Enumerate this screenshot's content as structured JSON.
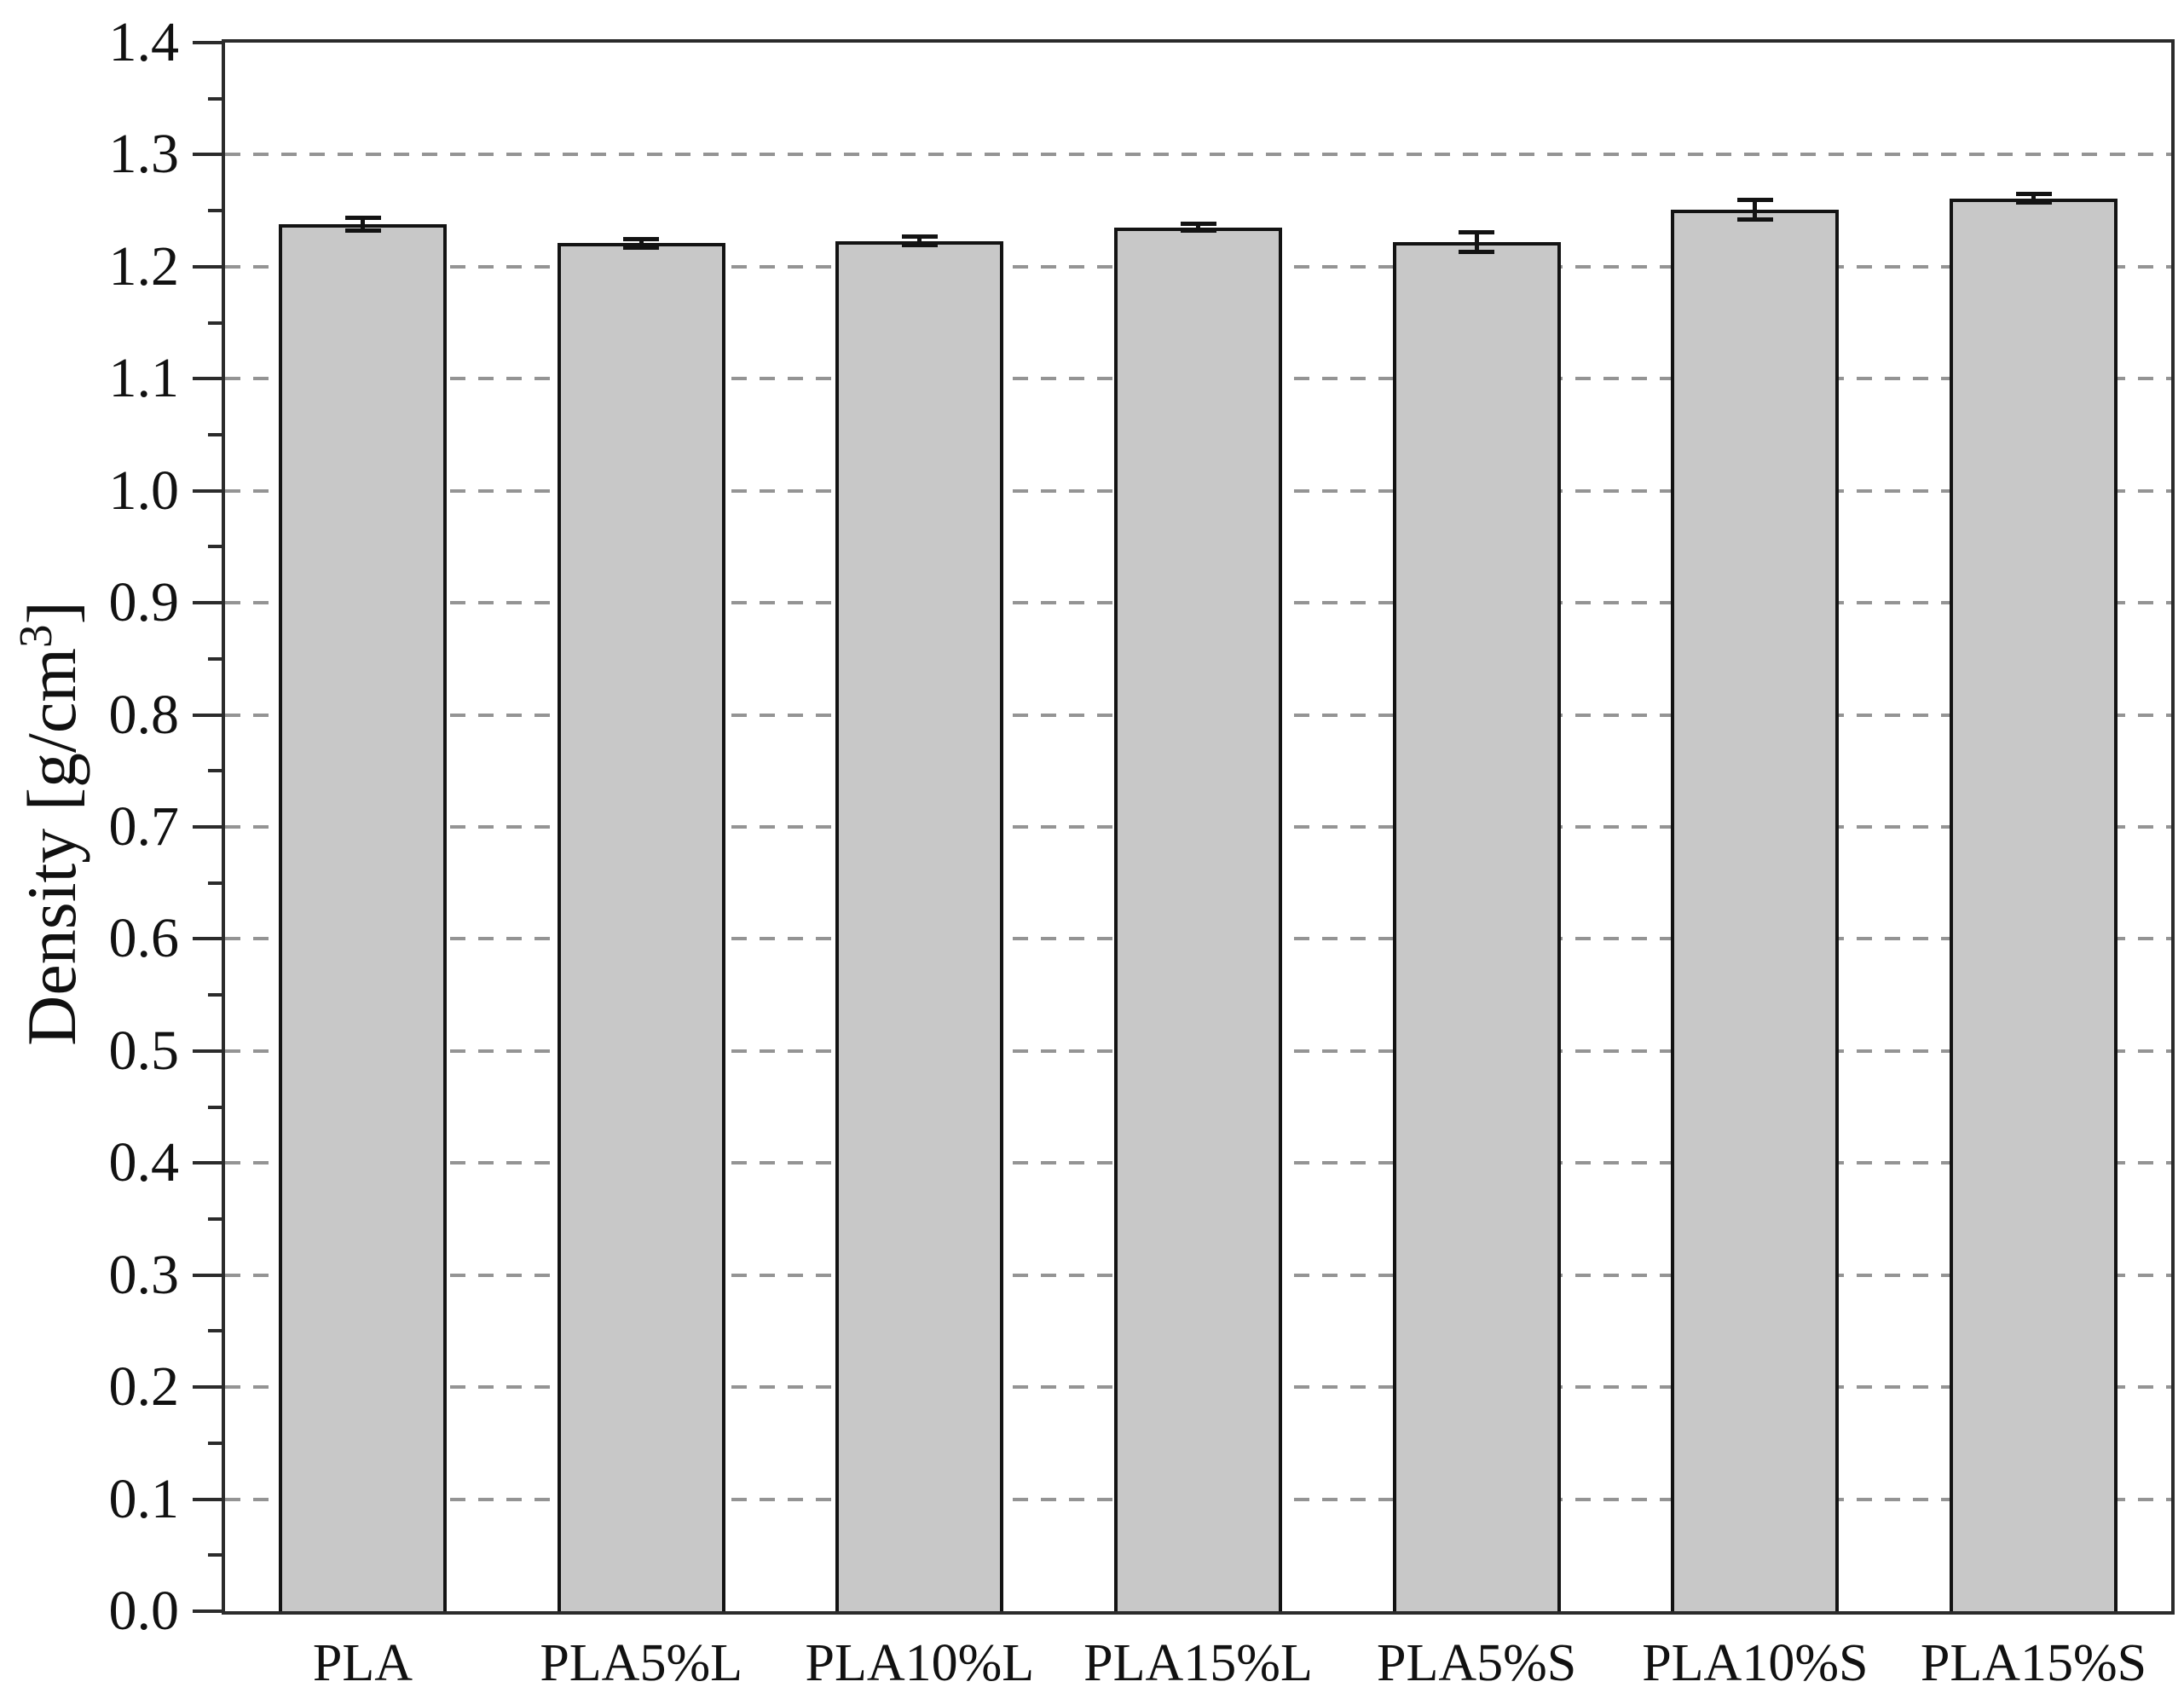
{
  "figure": {
    "background": "#ffffff",
    "kind": "scientific bar chart with error bars"
  },
  "chart_data": {
    "type": "bar",
    "title": "",
    "xlabel": "",
    "ylabel": "Density [g/cm³]",
    "categories": [
      "PLA",
      "PLA5%L",
      "PLA10%L",
      "PLA15%L",
      "PLA5%S",
      "PLA10%S",
      "PLA15%S"
    ],
    "values": [
      1.238,
      1.221,
      1.223,
      1.235,
      1.222,
      1.251,
      1.261
    ],
    "errors": [
      0.006,
      0.004,
      0.004,
      0.003,
      0.009,
      0.009,
      0.004
    ],
    "ylim": [
      0.0,
      1.4
    ],
    "ytick_step": 0.1,
    "ytick_minor_step": 0.05,
    "ytick_labels": [
      "0.0",
      "0.1",
      "0.2",
      "0.3",
      "0.4",
      "0.5",
      "0.6",
      "0.7",
      "0.8",
      "0.9",
      "1.0",
      "1.1",
      "1.2",
      "1.3",
      "1.4"
    ],
    "grid": "horizontal dashed at major ticks, 0.1 to 1.3",
    "legend": "none",
    "frame": "full box around plot area",
    "colors": {
      "bar_fill": "#c8c8c8",
      "bar_stroke": "#131313",
      "axis": "#2b2b2b",
      "grid": "#949494",
      "text": "#111111"
    }
  }
}
